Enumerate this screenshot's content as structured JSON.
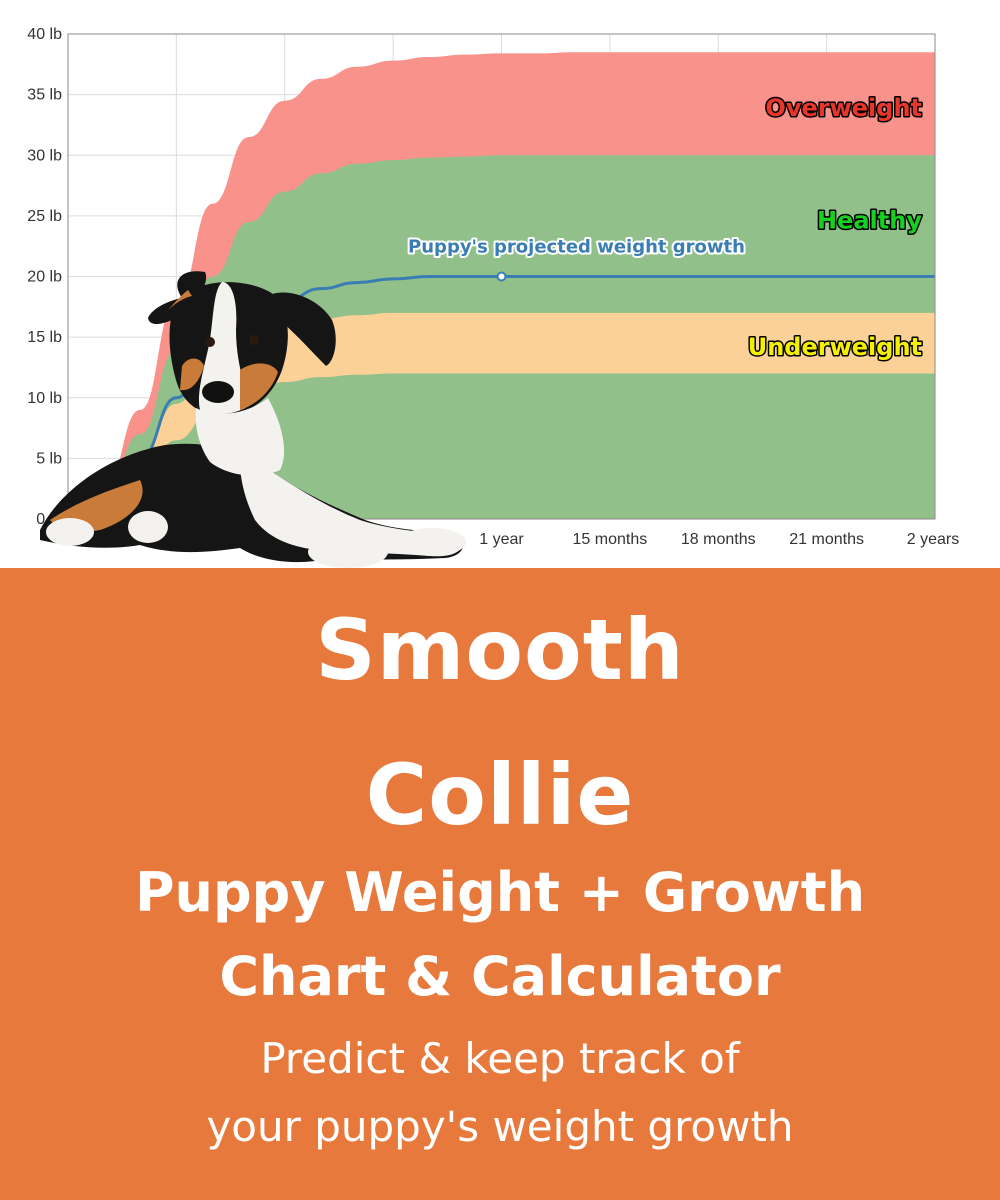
{
  "chart_data": {
    "type": "area",
    "x_tick_labels": [
      "1 year",
      "15 months",
      "18 months",
      "21 months",
      "2 years"
    ],
    "x_months": [
      1,
      2,
      3,
      4,
      5,
      6,
      7,
      8,
      9,
      10,
      11,
      12,
      13,
      14,
      15,
      16,
      17,
      18,
      19,
      20,
      21,
      22,
      23,
      24
    ],
    "y_tick_labels": [
      "0 lb",
      "5 lb",
      "10 lb",
      "15 lb",
      "20 lb",
      "25 lb",
      "30 lb",
      "35 lb",
      "40 lb"
    ],
    "ylim": [
      0,
      40
    ],
    "xlim": [
      0,
      24
    ],
    "grid": true,
    "bands": [
      {
        "name": "Overweight",
        "color": "#f8928a",
        "label_color": "#e8362a",
        "upper": [
          2.5,
          9,
          18,
          26,
          31.5,
          34.5,
          36.3,
          37.3,
          37.8,
          38.1,
          38.3,
          38.4,
          38.4,
          38.5,
          38.5,
          38.5,
          38.5,
          38.5,
          38.5,
          38.5,
          38.5,
          38.5,
          38.5,
          38.5
        ]
      },
      {
        "name": "Healthy",
        "color": "#91c08b",
        "label_color": "#16d11e",
        "upper": [
          2,
          7,
          14,
          20,
          24.5,
          27,
          28.5,
          29.3,
          29.6,
          29.8,
          29.9,
          30,
          30,
          30,
          30,
          30,
          30,
          30,
          30,
          30,
          30,
          30,
          30,
          30
        ]
      },
      {
        "name": "Underweight",
        "color": "#fcd198",
        "label_color": "#f4f000",
        "upper": [
          1.5,
          5,
          9.5,
          13,
          15,
          16,
          16.5,
          16.8,
          17,
          17,
          17,
          17,
          17,
          17,
          17,
          17,
          17,
          17,
          17,
          17,
          17,
          17,
          17,
          17
        ],
        "lower": [
          1,
          3.5,
          6.5,
          9,
          10.5,
          11.3,
          11.7,
          11.9,
          12,
          12,
          12,
          12,
          12,
          12,
          12,
          12,
          12,
          12,
          12,
          12,
          12,
          12,
          12,
          12
        ]
      }
    ],
    "series": [
      {
        "name": "Puppy's projected weight growth",
        "color": "#3a7db3",
        "values": [
          1.5,
          5,
          10,
          14,
          16.5,
          18,
          19,
          19.5,
          19.8,
          20,
          20,
          20,
          20,
          20,
          20,
          20,
          20,
          20,
          20,
          20,
          20,
          20,
          20,
          20
        ],
        "marker_month": 12
      }
    ]
  },
  "banner": {
    "breed_line1": "Smooth",
    "breed_line2": "Collie",
    "subtitle_line1": "Puppy Weight + Growth",
    "subtitle_line2": "Chart & Calculator",
    "tagline_line1": "Predict & keep track of",
    "tagline_line2": "your puppy's weight growth",
    "color": "#e8793c"
  },
  "illustration": {
    "subject": "puppy-dog-photo",
    "colors": {
      "black": "#151515",
      "tan": "#c97c3a",
      "white": "#f4f2ee"
    }
  }
}
